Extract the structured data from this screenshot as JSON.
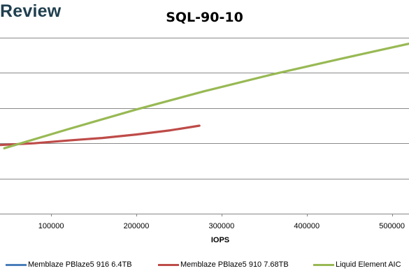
{
  "header": {
    "logo": "Review",
    "title": "SQL-90-10"
  },
  "chart_data": {
    "type": "line",
    "title": "SQL-90-10",
    "xlabel": "IOPS",
    "ylabel": "",
    "xlim": [
      40000,
      520000
    ],
    "ylim": [
      0,
      5
    ],
    "x_ticks": [
      "100000",
      "200000",
      "300000",
      "400000",
      "500000"
    ],
    "x_tick_values": [
      100000,
      200000,
      300000,
      400000,
      500000
    ],
    "y_gridlines": [
      0,
      1,
      2,
      3,
      4,
      5
    ],
    "grid": true,
    "legend_position": "bottom",
    "series": [
      {
        "name": "Memblaze PBlaze5 916 6.4TB",
        "color": "#4a7ebb",
        "x": [],
        "y": []
      },
      {
        "name": "Memblaze PBlaze5 910 7.68TB",
        "color": "#be4b48",
        "x": [
          40000,
          80000,
          120000,
          160000,
          200000,
          240000,
          274000
        ],
        "y": [
          1.95,
          2.0,
          2.08,
          2.15,
          2.25,
          2.37,
          2.5
        ]
      },
      {
        "name": "Liquid Element AIC",
        "color": "#98b954",
        "x": [
          45000,
          120000,
          200000,
          280000,
          360000,
          440000,
          520000
        ],
        "y": [
          1.86,
          2.4,
          2.96,
          3.48,
          3.96,
          4.4,
          4.83
        ]
      }
    ]
  }
}
